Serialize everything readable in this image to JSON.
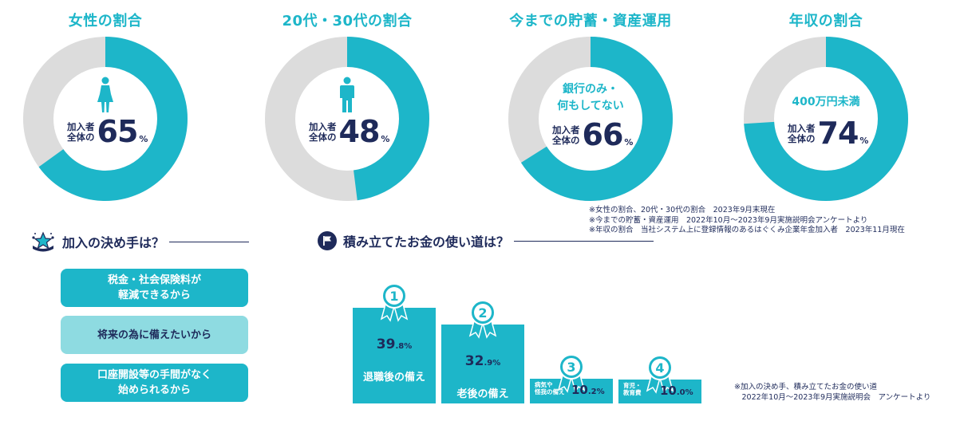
{
  "chart_data": [
    {
      "type": "pie",
      "title": "女性の割合",
      "stat_label": [
        "加入者",
        "全体の"
      ],
      "value": 65,
      "unit": "%",
      "icon": "female-person-icon",
      "colors": {
        "value": "#1db6c9",
        "rest": "#dcdcdc"
      }
    },
    {
      "type": "pie",
      "title": "20代・30代の割合",
      "stat_label": [
        "加入者",
        "全体の"
      ],
      "value": 48,
      "unit": "%",
      "icon": "male-person-icon",
      "colors": {
        "value": "#1db6c9",
        "rest": "#dcdcdc"
      }
    },
    {
      "type": "pie",
      "title": "今までの貯蓄・資産運用",
      "sublabel": [
        "銀行のみ・",
        "何もしてない"
      ],
      "stat_label": [
        "加入者",
        "全体の"
      ],
      "value": 66,
      "unit": "%",
      "colors": {
        "value": "#1db6c9",
        "rest": "#dcdcdc"
      }
    },
    {
      "type": "pie",
      "title": "年収の割合",
      "sublabel": [
        "400万円未満"
      ],
      "stat_label": [
        "加入者",
        "全体の"
      ],
      "value": 74,
      "unit": "%",
      "colors": {
        "value": "#1db6c9",
        "rest": "#dcdcdc"
      }
    },
    {
      "type": "bar",
      "title": "積み立てたお金の使い道は？",
      "categories": [
        "退職後の備え",
        "老後の備え",
        "病気や怪我の備え",
        "育児・教育費"
      ],
      "category_lines": [
        [
          "退職後の備え"
        ],
        [
          "老後の備え"
        ],
        [
          "病気や",
          "怪我の備え"
        ],
        [
          "育児・",
          "教育費"
        ]
      ],
      "values": [
        39.8,
        32.9,
        10.2,
        10.0
      ],
      "value_labels": [
        [
          "39",
          ".8",
          "%"
        ],
        [
          "32",
          ".9",
          "%"
        ],
        [
          "10",
          ".2",
          "%"
        ],
        [
          "10",
          ".0",
          "%"
        ]
      ],
      "ranks": [
        "1",
        "2",
        "3",
        "4"
      ],
      "unit": "%",
      "colors": {
        "bar": "#1db6c9",
        "ribbon": "#1db6c9"
      }
    }
  ],
  "notes_top": [
    "※女性の割合、20代・30代の割合　2023年9月末現在",
    "※今までの貯蓄・資産運用　2022年10月～2023年9月実施説明会アンケートより",
    "※年収の割合　当社システム上に登録情報のあるはぐくみ企業年金加入者　2023年11月現在"
  ],
  "reasons": {
    "title": "加入の決め手は？",
    "icon": "stars-crown-icon",
    "items": [
      {
        "lines": [
          "税金・社会保険料が",
          "軽減できるから"
        ],
        "color": "#1db6c9"
      },
      {
        "lines": [
          "将来の為に備えたいから"
        ],
        "color": "#8edbe1"
      },
      {
        "lines": [
          "口座開設等の手間がなく",
          "始められるから"
        ],
        "color": "#1db6c9"
      }
    ]
  },
  "usage": {
    "icon": "flag-icon"
  },
  "notes_bottom": [
    "※加入の決め手、積み立てたお金の使い道",
    "　2022年10月～2023年9月実施説明会　アンケートより"
  ]
}
